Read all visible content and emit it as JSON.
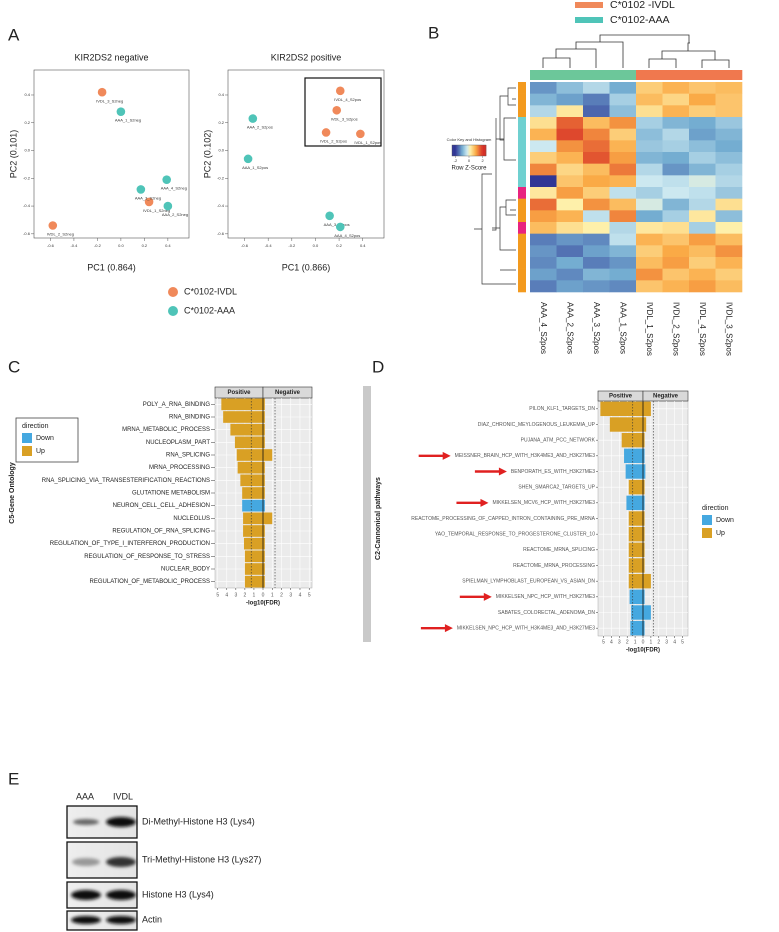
{
  "panel_labels": [
    "A",
    "B",
    "C",
    "D",
    "E"
  ],
  "chart_data": [
    {
      "type": "scatter",
      "series": [
        {
          "name": "C*0102-IVDL",
          "color": "#f0895a"
        },
        {
          "name": "C*0102-AAA",
          "color": "#4fc4b8"
        }
      ],
      "panels": [
        {
          "title": "KIR2DS2 negative",
          "xlabel": "PC1 (0.864)",
          "ylabel": "PC2 (0.101)",
          "xlim": [
            -0.74,
            0.58
          ],
          "ylim": [
            -0.63,
            0.58
          ],
          "xticks": [
            -0.6,
            -0.4,
            -0.2,
            {
              "value": 0,
              "label": "0.0"
            },
            0.2,
            0.4
          ],
          "yticks": [
            -0.6,
            -0.4,
            -0.2,
            {
              "value": 0,
              "label": "0.0"
            },
            0.2,
            0.4
          ],
          "groups": [
            {
              "labels": [
                "IVDL_3_S2neg",
                "IVDL_1_S2neg",
                "IVDL_2_S2neg"
              ],
              "x": [
                -0.16,
                0.24,
                -0.58
              ],
              "y": [
                0.42,
                -0.37,
                -0.54
              ]
            },
            {
              "labels": [
                "AAA_1_S2neg",
                "AAA_4_S2neg",
                "AAA_3_S2neg",
                "AAA_2_S2neg"
              ],
              "x": [
                0,
                0.39,
                0.17,
                0.4
              ],
              "y": [
                0.28,
                -0.21,
                -0.28,
                -0.4
              ]
            }
          ]
        },
        {
          "title": "KIR2DS2 positive",
          "xlabel": "PC1 (0.866)",
          "ylabel": "PC2 (0.102)",
          "xlim": [
            -0.74,
            0.58
          ],
          "ylim": [
            -0.63,
            0.58
          ],
          "xticks": [
            -0.6,
            -0.4,
            -0.2,
            {
              "value": 0,
              "label": "0.0"
            },
            0.2,
            0.4
          ],
          "yticks": [
            -0.6,
            -0.4,
            -0.2,
            {
              "value": 0,
              "label": "0.0"
            },
            0.2,
            0.4
          ],
          "groups": [
            {
              "labels": [
                "IVDL_4_S2pos",
                "IVDL_3_S2pos",
                "IVDL_2_S2pos",
                "IVDL_1_S2pos"
              ],
              "x": [
                0.21,
                0.18,
                0.09,
                0.38
              ],
              "y": [
                0.43,
                0.29,
                0.13,
                0.12
              ]
            },
            {
              "labels": [
                "AAA_2_S2pos",
                "AAA_1_S2pos",
                "AAA_3_S2pos",
                "AAA_4_S2pos"
              ],
              "x": [
                -0.53,
                -0.57,
                0.12,
                0.21
              ],
              "y": [
                0.23,
                -0.06,
                -0.47,
                -0.55
              ]
            }
          ]
        }
      ]
    },
    {
      "type": "heatmap",
      "series": [
        {
          "name": "C*0102 -IVDL",
          "color": "#f0895a"
        },
        {
          "name": "C*0102-AAA",
          "color": "#4fc4b8"
        }
      ],
      "columns": [
        "AAA_4_S2pos",
        "AAA_2_S2pos",
        "AAA_3_S2pos",
        "AAA_1_S2pos",
        "IVDL_1_S2pos",
        "IVDL_2_S2pos",
        "IVDL_4_S2pos",
        "IVDL_3_S2pos"
      ],
      "column_colors": [
        "#6cc79a",
        "#6cc79a",
        "#6cc79a",
        "#6cc79a",
        "#f0784e",
        "#f0784e",
        "#f0784e",
        "#f0784e"
      ],
      "row_colors": [
        "#f39a1e",
        "#f39a1e",
        "#f39a1e",
        "#6fd0d0",
        "#6fd0d0",
        "#6fd0d0",
        "#6fd0d0",
        "#6fd0d0",
        "#6fd0d0",
        "#e8237f",
        "#f39a1e",
        "#f39a1e",
        "#e8237f",
        "#f39a1e",
        "#f39a1e",
        "#f39a1e",
        "#f39a1e",
        "#f39a1e"
      ],
      "values": [
        [
          -1.2,
          -0.8,
          -0.5,
          -1.0,
          0.6,
          0.9,
          0.7,
          0.8
        ],
        [
          -0.9,
          -1.1,
          -1.4,
          -0.6,
          0.8,
          0.5,
          1.0,
          0.7
        ],
        [
          -0.5,
          0.3,
          -1.6,
          -0.8,
          0.4,
          0.9,
          0.6,
          0.7
        ],
        [
          0.4,
          1.6,
          0.8,
          1.2,
          -0.6,
          -0.9,
          -1.0,
          -0.7
        ],
        [
          0.9,
          1.8,
          1.3,
          0.6,
          -0.8,
          -0.5,
          -1.1,
          -0.9
        ],
        [
          -0.3,
          1.2,
          1.5,
          0.9,
          -0.7,
          -0.6,
          -0.8,
          -1.0
        ],
        [
          0.6,
          0.9,
          1.7,
          1.1,
          -0.9,
          -1.0,
          -0.6,
          -0.8
        ],
        [
          1.3,
          0.5,
          0.8,
          1.4,
          -0.5,
          -1.2,
          -0.9,
          -0.6
        ],
        [
          -2.0,
          0.7,
          1.0,
          0.9,
          -0.3,
          -0.4,
          -0.2,
          -0.5
        ],
        [
          0.3,
          1.1,
          0.6,
          -0.4,
          -0.6,
          -0.3,
          -0.4,
          -0.7
        ],
        [
          1.5,
          0.2,
          1.2,
          0.8,
          -0.2,
          -0.9,
          -0.5,
          0.4
        ],
        [
          1.1,
          0.9,
          -0.4,
          1.3,
          -1.0,
          -0.6,
          0.3,
          -0.8
        ],
        [
          0.8,
          0.4,
          0.2,
          -0.5,
          0.3,
          0.4,
          -0.6,
          0.2
        ],
        [
          -1.4,
          -1.2,
          -1.3,
          -0.4,
          0.9,
          0.7,
          1.1,
          0.8
        ],
        [
          -1.2,
          -1.5,
          -1.1,
          -0.9,
          0.6,
          1.0,
          0.8,
          1.2
        ],
        [
          -1.3,
          -1.0,
          -1.4,
          -1.2,
          0.8,
          1.1,
          0.6,
          0.9
        ],
        [
          -1.1,
          -1.3,
          -0.9,
          -1.0,
          1.2,
          0.7,
          0.9,
          0.6
        ],
        [
          -1.4,
          -1.1,
          -1.2,
          -1.3,
          0.7,
          0.9,
          1.1,
          0.8
        ]
      ],
      "zlim": [
        -2.5,
        2.5
      ],
      "color_key": {
        "title": "Color Key and Histogram",
        "label": "Row Z-Score",
        "ticks": [
          -2,
          0,
          2
        ]
      }
    },
    {
      "type": "bar",
      "orientation": "horizontal",
      "ylabel": "C5-Gene Ontology",
      "xlabel": "-log10(FDR)",
      "facets": [
        "Positive",
        "Negative"
      ],
      "legend_title": "direction",
      "categories": [
        "POLY_A_RNA_BINDING",
        "RNA_BINDING",
        "MRNA_METABOLIC_PROCESS",
        "NUCLEOPLASM_PART",
        "RNA_SPLICING",
        "MRNA_PROCESSING",
        "RNA_SPLICING_VIA_TRANSESTERIFICATION_REACTIONS",
        "GLUTATIONE METABOLISM",
        "NEURON_CELL_CELL_ADHESION",
        "NUCLEOLUS",
        "REGULATION_OF_RNA_SPLICING",
        "REGULATION_OF_TYPE_I_INTERFERON_PRODUCTION",
        "REGULATION_OF_RESPONSE_TO_STRESS",
        "NUCLEAR_BODY",
        "REGULATION_OF_METABOLIC_PROCESS"
      ],
      "series": [
        {
          "name": "Down",
          "color": "#45a8e0",
          "positive": [
            null,
            null,
            null,
            null,
            null,
            null,
            null,
            null,
            2.3,
            null,
            null,
            null,
            null,
            null,
            null
          ],
          "negative": [
            null,
            null,
            null,
            null,
            null,
            null,
            null,
            null,
            0.2,
            null,
            null,
            null,
            null,
            null,
            null
          ]
        },
        {
          "name": "Up",
          "color": "#d9a024",
          "positive": [
            4.6,
            4.4,
            3.6,
            3.1,
            2.9,
            2.8,
            2.5,
            2.3,
            null,
            2.2,
            2.2,
            2.1,
            2.0,
            2.0,
            2.0
          ],
          "negative": [
            0.2,
            0.2,
            0.2,
            0.2,
            1.0,
            0.2,
            0.2,
            0.2,
            null,
            1.0,
            0.2,
            0.2,
            0.2,
            0.2,
            0.2
          ]
        }
      ],
      "positive_xlim": [
        5.3,
        0
      ],
      "negative_xlim": [
        0,
        5.3
      ],
      "positive_xticks": [
        5,
        4,
        3,
        2,
        1,
        0
      ],
      "negative_xticks": [
        1,
        2,
        3,
        4,
        5
      ],
      "threshold": 1.3,
      "grid": true
    },
    {
      "type": "bar",
      "orientation": "horizontal",
      "ylabel": "C2-Cannonical pathways",
      "xlabel": "-log10(FDR)",
      "facets": [
        "Positive",
        "Negative"
      ],
      "legend_title": "direction",
      "categories": [
        "PILON_KLF1_TARGETS_DN",
        "DIAZ_CHRONIC_MEYLOGENOUS_LEUKEMIA_UP",
        "PUJANA_ATM_PCC_NETWORK",
        "MEISSNER_BRAIN_HCP_WITH_H3K4ME3_AND_H3K27ME3",
        "BENPORATH_ES_WITH_H3K27ME3",
        "SHEN_SMARCA2_TARGETS_UP",
        "MIKKELSEN_MCV6_HCP_WITH_H3K27ME3",
        "REACTOME_PROCESSING_OF_CAPPED_INTRON_CONTAINING_PRE_MRNA",
        "YAO_TEMPORAL_RESPONSE_TO_PROGESTERONE_CLUSTER_10",
        "REACTOME_MRNA_SPLICING",
        "REACTOME_MRNA_PROCESSING",
        "SPIELMAN_LYMPHOBLAST_EUROPEAN_VS_ASIAN_DN",
        "MIKKELSEN_NPC_HCP_WITH_H3K27ME3",
        "SABATES_COLORECTAL_ADENOMA_DN",
        "MIKKELSEN_NPC_HCP_WITH_H3K4ME3_AND_H3K27ME3"
      ],
      "series": [
        {
          "name": "Down",
          "color": "#45a8e0",
          "positive": [
            null,
            null,
            null,
            2.4,
            2.2,
            null,
            2.1,
            null,
            null,
            null,
            null,
            null,
            1.7,
            1.5,
            1.6
          ],
          "negative": [
            null,
            null,
            null,
            0.2,
            0.3,
            null,
            0.2,
            null,
            null,
            null,
            null,
            null,
            0.2,
            1.0,
            0.2
          ]
        },
        {
          "name": "Up",
          "color": "#d9a024",
          "positive": [
            5.4,
            4.2,
            2.7,
            null,
            null,
            1.8,
            null,
            1.8,
            1.8,
            1.8,
            1.8,
            1.8,
            null,
            null,
            null
          ],
          "negative": [
            1.0,
            0.4,
            0.2,
            null,
            null,
            0.2,
            null,
            0.2,
            0.2,
            0.2,
            0.2,
            1.0,
            null,
            null,
            null
          ]
        }
      ],
      "positive_xlim": [
        5.7,
        0
      ],
      "negative_xlim": [
        0,
        5.7
      ],
      "positive_xticks": [
        5,
        4,
        3,
        2,
        1,
        0
      ],
      "negative_xticks": [
        1,
        2,
        3,
        4,
        5
      ],
      "threshold": 1.3,
      "grid": true,
      "highlighted": [
        false,
        false,
        false,
        true,
        true,
        false,
        true,
        false,
        false,
        false,
        false,
        false,
        true,
        false,
        true
      ]
    }
  ],
  "blot": {
    "lanes": [
      "AAA",
      "IVDL"
    ],
    "labels": [
      "Di-Methyl-Histone H3 (Lys4)",
      "Tri-Methyl-Histone H3 (Lys27)",
      "Histone H3 (Lys4)",
      "Actin"
    ]
  }
}
